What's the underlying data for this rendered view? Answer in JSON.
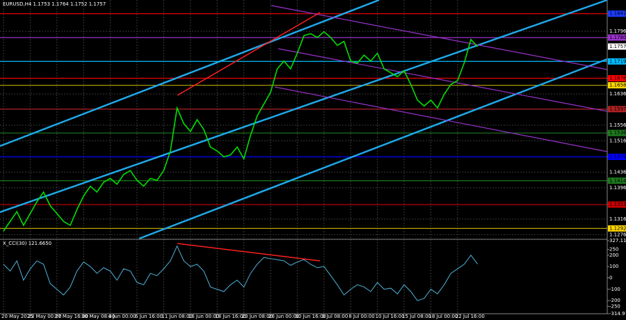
{
  "chart_data": [
    {
      "type": "line",
      "title": "EURUSD,H4  1.1753 1.1764 1.1752 1.1757",
      "ylim": [
        1.1266,
        1.1876
      ],
      "yticks": [
        1.1796,
        1.1636,
        1.1556,
        1.1516,
        1.1436,
        1.1396,
        1.1316,
        1.1276
      ],
      "grid": true,
      "series": [
        {
          "color": "#00e000",
          "values": [
            1.1285,
            1.131,
            1.1335,
            1.13,
            1.133,
            1.136,
            1.1385,
            1.135,
            1.133,
            1.131,
            1.13,
            1.134,
            1.1375,
            1.14,
            1.1385,
            1.141,
            1.142,
            1.1405,
            1.143,
            1.144,
            1.1415,
            1.14,
            1.142,
            1.1415,
            1.144,
            1.149,
            1.16,
            1.156,
            1.154,
            1.157,
            1.1545,
            1.15,
            1.149,
            1.1475,
            1.148,
            1.15,
            1.147,
            1.153,
            1.158,
            1.161,
            1.164,
            1.17,
            1.172,
            1.17,
            1.174,
            1.1785,
            1.179,
            1.178,
            1.1795,
            1.178,
            1.176,
            1.177,
            1.172,
            1.1715,
            1.1735,
            1.172,
            1.174,
            1.17,
            1.169,
            1.168,
            1.1695,
            1.166,
            1.162,
            1.1605,
            1.162,
            1.16,
            1.1635,
            1.166,
            1.167,
            1.1715,
            1.1775,
            1.1757
          ]
        }
      ],
      "levels": [
        {
          "value": 1.1841,
          "color": "#ff0000",
          "box": "#1e3cff"
        },
        {
          "value": {
            "value": 1.178,
            "label": "1.1780"
          },
          "color": "#9932cc",
          "box": "#9932cc"
        },
        {
          "value": 1.1719,
          "color": "#00bfff",
          "box": "#00bfff"
        },
        {
          "value": 1.1676,
          "color": "#ff0000",
          "box": "#ff0000"
        },
        {
          "value": 1.1658,
          "color": "#b8a000",
          "box": "#ffd700"
        },
        {
          "value": 1.1597,
          "color": "#b22222",
          "box": "#b22222"
        },
        {
          "value": 1.1536,
          "color": "#1f7a1f",
          "box": "#1f7a1f"
        },
        {
          "value": 1.1475,
          "color": "#0000ff",
          "box": "#0000ff"
        },
        {
          "value": 1.1414,
          "color": "#1f7a1f",
          "box": "#1f7a1f"
        },
        {
          "value": 1.1353,
          "color": "#cc0000",
          "box": "#cc0000"
        },
        {
          "value": 1.1292,
          "color": "#b8a000",
          "box": "#ffd700"
        }
      ]
    },
    {
      "type": "line",
      "title": "X_CCI(30) 121.6650",
      "ylim": [
        -314.976,
        327.116
      ],
      "yticks": [
        327.116,
        250,
        200,
        100,
        0,
        -100,
        -200,
        -250,
        -314.976
      ],
      "categories": [
        "20 May 2025",
        null,
        null,
        null,
        "23 May 00:00",
        null,
        null,
        null,
        "27 May 16:00",
        null,
        null,
        null,
        "30 May 08:00",
        null,
        null,
        null,
        "4 Jun 00:00",
        null,
        null,
        null,
        "6 Jun 16:00",
        null,
        null,
        null,
        "11 Jun 08:00",
        null,
        null,
        null,
        "16 Jun 00:00",
        null,
        null,
        null,
        "18 Jun 16:00",
        null,
        null,
        null,
        "23 Jun 08:00",
        null,
        null,
        null,
        "26 Jun 00:00",
        null,
        null,
        null,
        "30 Jun 16:00",
        null,
        null,
        null,
        "3 Jul 08:00",
        null,
        null,
        null,
        "8 Jul 00:00",
        null,
        null,
        null,
        "10 Jul 16:00",
        null,
        null,
        null,
        "15 Jul 08:00",
        null,
        null,
        null,
        "18 Jul 00:00",
        null,
        null,
        null,
        "22 Jul 16:00",
        null,
        null,
        null
      ],
      "series": [
        {
          "color": "#4fb3d9",
          "values": [
            120,
            60,
            150,
            -20,
            80,
            150,
            120,
            -50,
            -100,
            -150,
            -80,
            60,
            140,
            100,
            40,
            90,
            60,
            -20,
            80,
            60,
            -40,
            -60,
            40,
            20,
            80,
            150,
            280,
            150,
            100,
            120,
            60,
            -80,
            -100,
            -120,
            -60,
            -20,
            -80,
            40,
            120,
            180,
            170,
            160,
            150,
            110,
            140,
            160,
            120,
            90,
            100,
            20,
            -60,
            -150,
            -100,
            -60,
            -80,
            -120,
            -40,
            -100,
            -90,
            -140,
            -60,
            -120,
            -200,
            -180,
            -100,
            -140,
            -60,
            40,
            80,
            120,
            200,
            122
          ]
        }
      ]
    }
  ]
}
